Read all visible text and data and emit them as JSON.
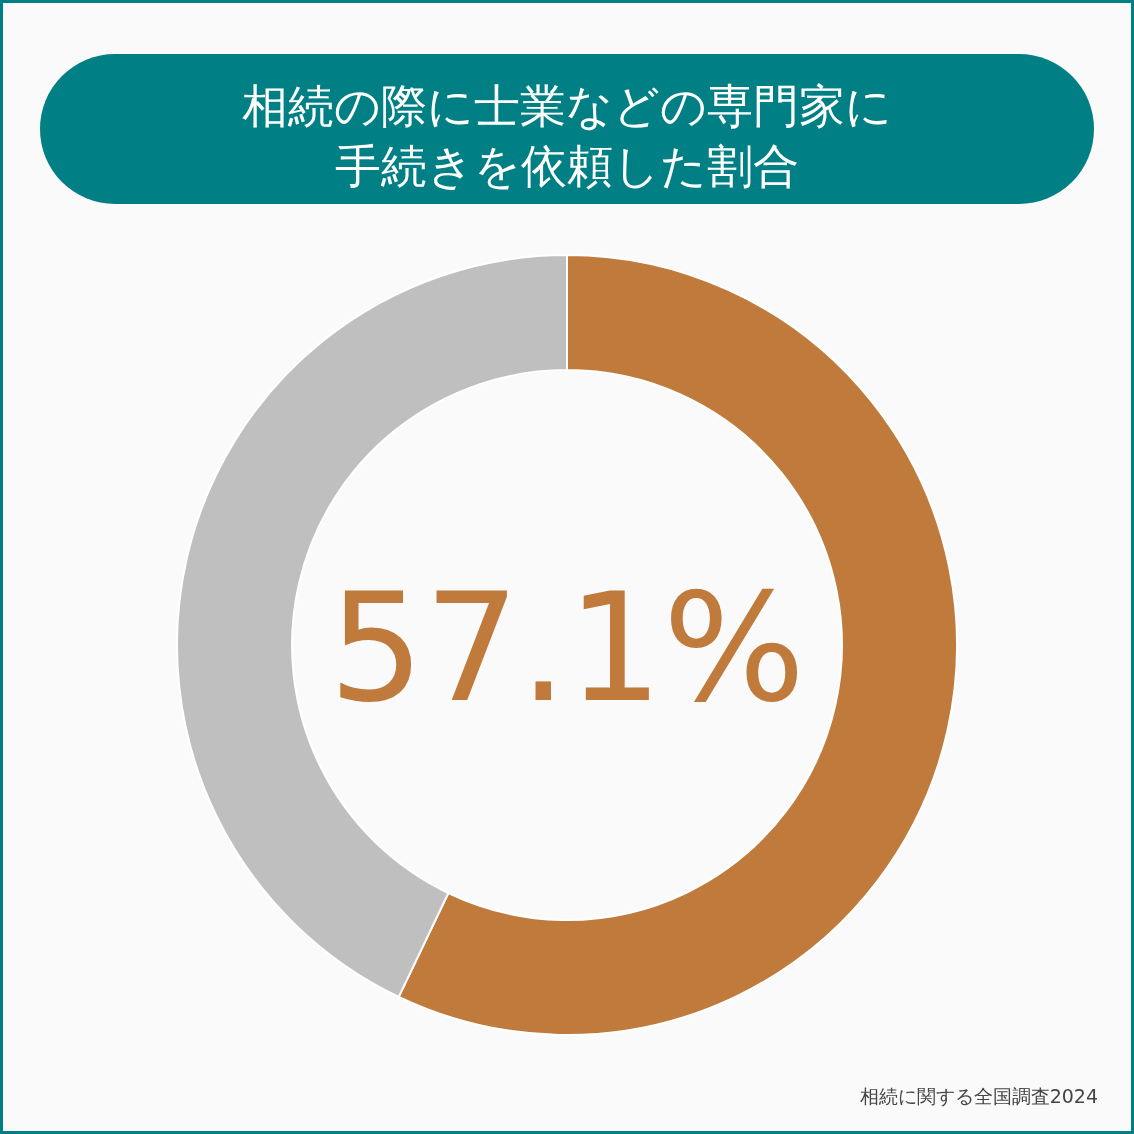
{
  "chart_data": {
    "type": "donut",
    "title": "相続の際に士業などの専門家に手続きを依頼した割合",
    "categories": [
      null,
      null
    ],
    "values": [
      57.1,
      42.9
    ],
    "colors": [
      "#bf7a3c",
      "#bfbfbf"
    ],
    "value_labels": [
      "57.1%",
      null
    ],
    "annotations": [
      "相続に関する全国調査2024"
    ]
  }
}
